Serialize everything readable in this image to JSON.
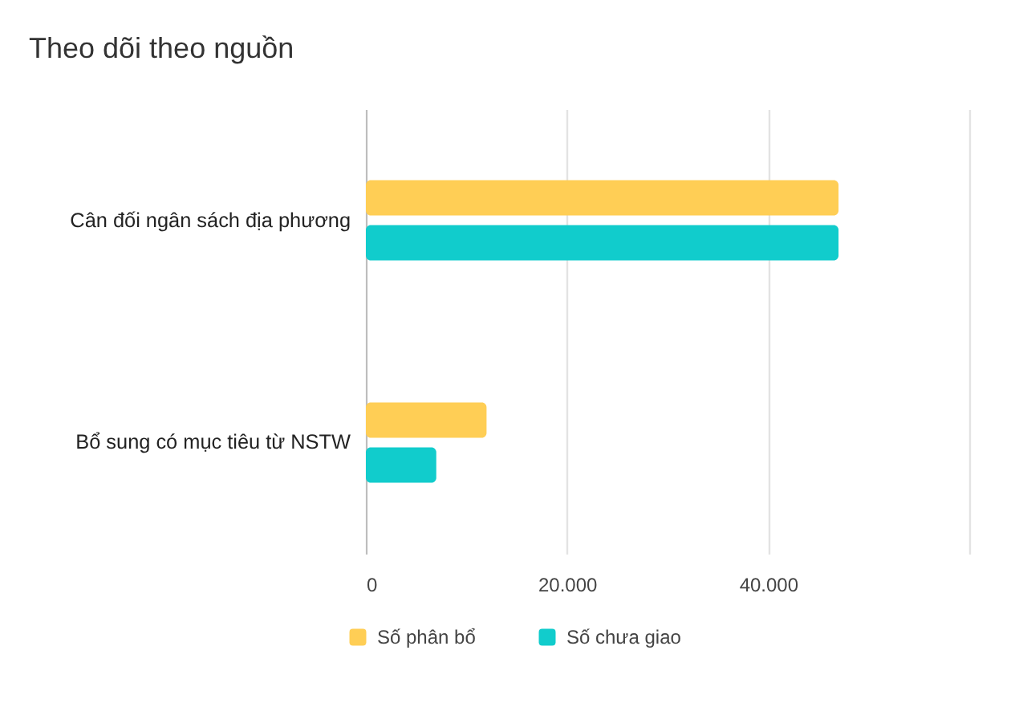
{
  "chart_data": {
    "type": "bar",
    "title": "Theo dõi theo nguồn",
    "orientation": "horizontal",
    "categories": [
      "Cân đối ngân sách địa phương",
      "Bổ sung có mục tiêu từ NSTW"
    ],
    "series": [
      {
        "name": "Số phân bổ",
        "color": "#ffce55",
        "values": [
          47000,
          12000
        ]
      },
      {
        "name": "Số chưa giao",
        "color": "#11cccc",
        "values": [
          47000,
          7000
        ]
      }
    ],
    "xlim": [
      0,
      60000
    ],
    "xticks": [
      0,
      {
        "value": 20000,
        "label": "20.000"
      },
      {
        "value": 40000,
        "label": "40.000"
      },
      {
        "value": 60000,
        "label": null
      }
    ],
    "grid": "x",
    "legend": "bottom"
  }
}
